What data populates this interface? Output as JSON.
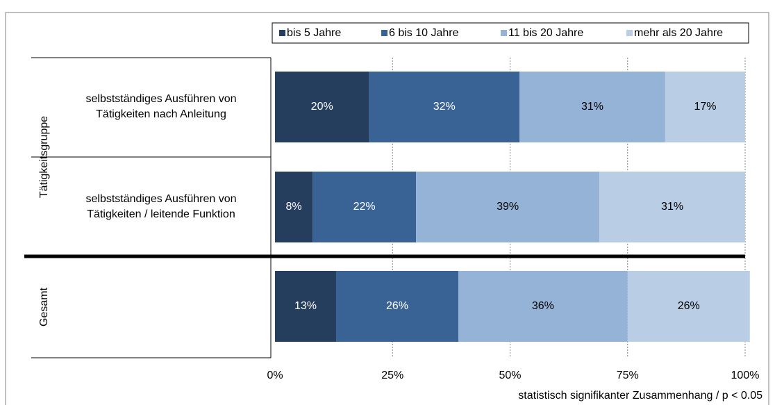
{
  "chart_data": {
    "type": "stacked-bar-horizontal",
    "categories": [
      "selbstständiges Ausführen von Tätigkeiten nach Anleitung",
      "selbstständiges Ausführen von Tätigkeiten / leitende Funktion",
      null
    ],
    "groups": [
      "Tätigkeitsgruppe",
      "Gesamt"
    ],
    "series": [
      {
        "name": "bis 5 Jahre",
        "color": "#263e5e",
        "values": [
          20,
          8,
          13
        ],
        "value_labels": [
          "20%",
          "8%",
          "13%"
        ]
      },
      {
        "name": "6 bis 10 Jahre",
        "color": "#3a6395",
        "values": [
          32,
          22,
          26
        ],
        "value_labels": [
          "32%",
          "22%",
          "26%"
        ]
      },
      {
        "name": "11 bis 20 Jahre",
        "color": "#95b3d7",
        "values": [
          31,
          39,
          36
        ],
        "value_labels": [
          "31%",
          "39%",
          "36%"
        ]
      },
      {
        "name": "mehr als 20 Jahre",
        "color": "#b9cde5",
        "values": [
          17,
          31,
          26
        ],
        "value_labels": [
          "17%",
          "31%",
          "26%"
        ]
      }
    ],
    "xlim": [
      0,
      100
    ],
    "xticks": [
      {
        "value": 0,
        "label": "0%"
      },
      {
        "value": 25,
        "label": "25%"
      },
      {
        "value": 50,
        "label": "50%"
      },
      {
        "value": 75,
        "label": "75%"
      },
      {
        "value": 100,
        "label": "100%"
      }
    ],
    "grid": true,
    "legend": "top",
    "footnote": "statistisch signifikanter Zusammenhang / p < 0.05"
  }
}
